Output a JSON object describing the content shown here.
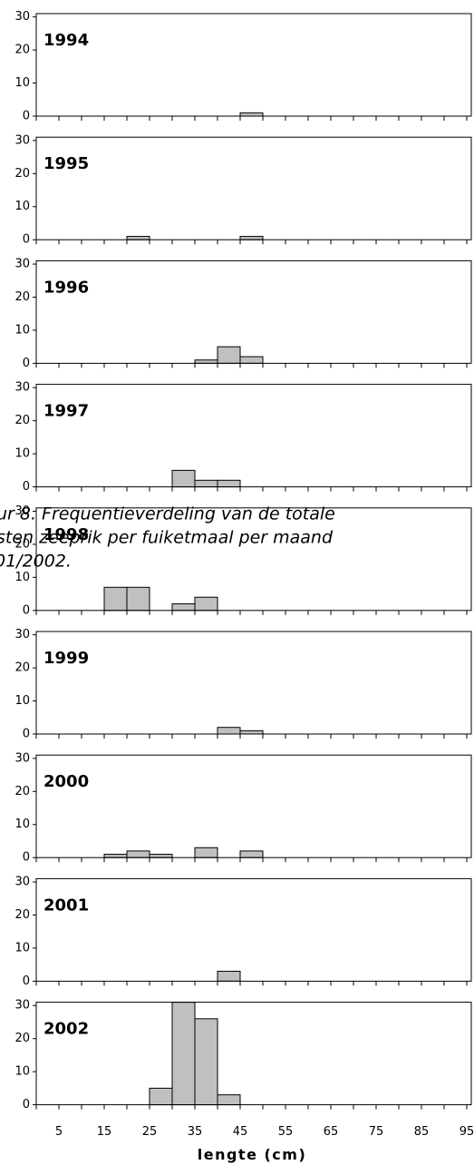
{
  "caption_lines": [
    "ur 8. Frequentieverdeling van de totale",
    "sten zeeprik per fuiketmaal per maand",
    "01/2002."
  ],
  "chart_data": [
    {
      "type": "histogram",
      "title": "1994",
      "bins": [
        15,
        20,
        25,
        30,
        35,
        40,
        45,
        50
      ],
      "values": [
        0,
        0,
        0,
        0,
        0,
        0,
        1
      ],
      "color": "#c0c0c0",
      "xlim": [
        0,
        96
      ],
      "ylim": [
        0,
        31
      ],
      "yticks": [
        0,
        10,
        20,
        30
      ]
    },
    {
      "type": "histogram",
      "title": "1995",
      "bins": [
        15,
        20,
        25,
        30,
        35,
        40,
        45,
        50
      ],
      "values": [
        0,
        1,
        0,
        0,
        0,
        0,
        1
      ],
      "color": "#c0c0c0",
      "xlim": [
        0,
        96
      ],
      "ylim": [
        0,
        31
      ],
      "yticks": [
        0,
        10,
        20,
        30
      ]
    },
    {
      "type": "histogram",
      "title": "1996",
      "bins": [
        15,
        20,
        25,
        30,
        35,
        40,
        45,
        50
      ],
      "values": [
        0,
        0,
        0,
        0,
        1,
        5,
        2
      ],
      "color": "#c0c0c0",
      "xlim": [
        0,
        96
      ],
      "ylim": [
        0,
        31
      ],
      "yticks": [
        0,
        10,
        20,
        30
      ]
    },
    {
      "type": "histogram",
      "title": "1997",
      "bins": [
        15,
        20,
        25,
        30,
        35,
        40,
        45,
        50
      ],
      "values": [
        0,
        0,
        0,
        5,
        2,
        2,
        0
      ],
      "color": "#c0c0c0",
      "xlim": [
        0,
        96
      ],
      "ylim": [
        0,
        31
      ],
      "yticks": [
        0,
        10,
        20,
        30
      ]
    },
    {
      "type": "histogram",
      "title": "1998",
      "bins": [
        15,
        20,
        25,
        30,
        35,
        40,
        45,
        50
      ],
      "values": [
        7,
        7,
        0,
        2,
        4,
        0,
        0
      ],
      "color": "#c0c0c0",
      "xlim": [
        0,
        96
      ],
      "ylim": [
        0,
        31
      ],
      "yticks": [
        0,
        10,
        20,
        30
      ]
    },
    {
      "type": "histogram",
      "title": "1999",
      "bins": [
        15,
        20,
        25,
        30,
        35,
        40,
        45,
        50
      ],
      "values": [
        0,
        0,
        0,
        0,
        0,
        2,
        1
      ],
      "color": "#c0c0c0",
      "xlim": [
        0,
        96
      ],
      "ylim": [
        0,
        31
      ],
      "yticks": [
        0,
        10,
        20,
        30
      ]
    },
    {
      "type": "histogram",
      "title": "2000",
      "bins": [
        15,
        20,
        25,
        30,
        35,
        40,
        45,
        50
      ],
      "values": [
        1,
        2,
        1,
        0,
        3,
        0,
        2
      ],
      "color": "#c0c0c0",
      "xlim": [
        0,
        96
      ],
      "ylim": [
        0,
        31
      ],
      "yticks": [
        0,
        10,
        20,
        30
      ]
    },
    {
      "type": "histogram",
      "title": "2001",
      "bins": [
        15,
        20,
        25,
        30,
        35,
        40,
        45,
        50
      ],
      "values": [
        0,
        0,
        0,
        0,
        0,
        3,
        0
      ],
      "color": "#c0c0c0",
      "xlim": [
        0,
        96
      ],
      "ylim": [
        0,
        31
      ],
      "yticks": [
        0,
        10,
        20,
        30
      ]
    },
    {
      "type": "histogram",
      "title": "2002",
      "bins": [
        15,
        20,
        25,
        30,
        35,
        40,
        45,
        50
      ],
      "values": [
        0,
        0,
        5,
        31,
        26,
        3,
        0
      ],
      "color": "#c0c0c0",
      "xlim": [
        0,
        96
      ],
      "ylim": [
        0,
        31
      ],
      "yticks": [
        0,
        10,
        20,
        30
      ],
      "xticks": [
        5,
        15,
        25,
        35,
        45,
        55,
        65,
        75,
        85,
        95
      ],
      "xlabel": "lengte (cm)"
    }
  ]
}
